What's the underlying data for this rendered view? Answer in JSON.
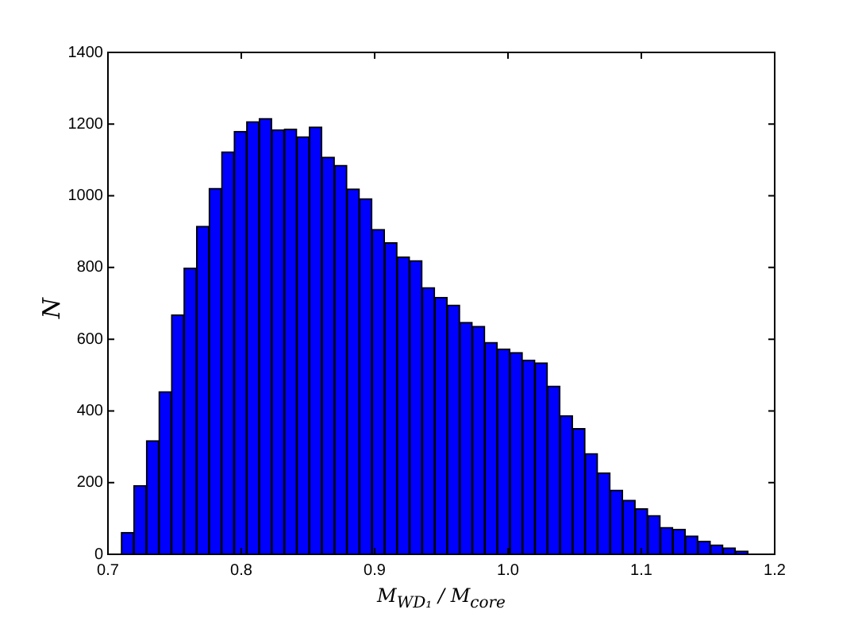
{
  "chart_data": {
    "type": "histogram",
    "xlabel": "M$_{WD₁}$ / M$_{core}$",
    "ylabel": "N",
    "color": "#0000ff",
    "bins": [
      0.71,
      0.7194,
      0.7288,
      0.7382,
      0.7476,
      0.757,
      0.7664,
      0.7758,
      0.7852,
      0.7946,
      0.804,
      0.8134,
      0.8228,
      0.8322,
      0.8416,
      0.851,
      0.8604,
      0.8698,
      0.8792,
      0.8886,
      0.898,
      0.9074,
      0.9168,
      0.9262,
      0.9356,
      0.945,
      0.9544,
      0.9638,
      0.9732,
      0.9826,
      0.992,
      1.0014,
      1.0108,
      1.0202,
      1.0296,
      1.039,
      1.0484,
      1.0578,
      1.0672,
      1.0766,
      1.086,
      1.0954,
      1.1048,
      1.1142,
      1.1236,
      1.133,
      1.1424,
      1.1518,
      1.1612,
      1.1706,
      1.18
    ],
    "values": [
      61,
      192,
      317,
      454,
      668,
      798,
      915,
      1021,
      1123,
      1180,
      1207,
      1216,
      1184,
      1186,
      1165,
      1192,
      1108,
      1085,
      1019,
      992,
      906,
      869,
      829,
      819,
      744,
      717,
      695,
      647,
      636,
      591,
      573,
      563,
      542,
      534,
      469,
      387,
      351,
      281,
      227,
      179,
      151,
      127,
      108,
      75,
      70,
      51,
      37,
      26,
      18,
      9
    ],
    "xlim": [
      0.7,
      1.2
    ],
    "xticks": [
      0.7,
      0.8,
      0.9,
      {
        "value": 1.0,
        "label": "1.0"
      },
      1.1,
      1.2
    ],
    "ylim": [
      0,
      1400
    ],
    "yticks": [
      0,
      200,
      400,
      600,
      800,
      1000,
      1200,
      1400
    ],
    "grid": false
  }
}
